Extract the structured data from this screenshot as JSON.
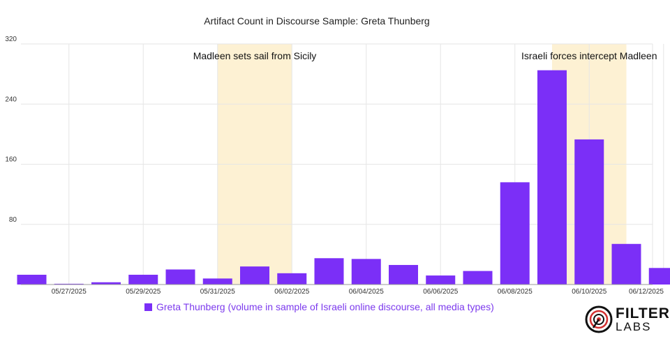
{
  "chart_data": {
    "type": "bar",
    "title": "Artifact Count in Discourse Sample: Greta Thunberg",
    "xlabel": "",
    "ylabel": "",
    "ylim": [
      0,
      320
    ],
    "y_ticks": [
      80,
      160,
      240,
      320
    ],
    "x_tick_labels": [
      "05/27/2025",
      "05/29/2025",
      "05/31/2025",
      "06/02/2025",
      "06/04/2025",
      "06/06/2025",
      "06/08/2025",
      "06/10/2025",
      "06/12/2025"
    ],
    "categories": [
      "05/26/2025",
      "05/27/2025",
      "05/28/2025",
      "05/29/2025",
      "05/30/2025",
      "05/31/2025",
      "06/01/2025",
      "06/02/2025",
      "06/03/2025",
      "06/04/2025",
      "06/05/2025",
      "06/06/2025",
      "06/07/2025",
      "06/08/2025",
      "06/09/2025",
      "06/10/2025",
      "06/11/2025",
      "06/12/2025"
    ],
    "series": [
      {
        "name": "Greta Thunberg (volume in sample of Israeli online discourse, all media types)",
        "color": "#7b2ff7",
        "values": [
          13,
          1,
          3,
          13,
          20,
          8,
          24,
          15,
          35,
          34,
          26,
          12,
          18,
          136,
          285,
          193,
          54,
          22
        ]
      }
    ],
    "annotations": [
      {
        "label": "Madleen sets sail from Sicily",
        "span": [
          "05/31/2025",
          "06/02/2025"
        ],
        "color": "#fdf1d3"
      },
      {
        "label": "Israeli forces intercept Madleen",
        "span": [
          "06/09/2025",
          "06/11/2025"
        ],
        "color": "#fdf1d3"
      }
    ],
    "grid": true,
    "legend_position": "bottom"
  },
  "legend": {
    "label": "Greta Thunberg (volume in sample of Israeli online discourse, all media types)"
  },
  "logo": {
    "line1": "FILTER",
    "line2": "LABS"
  }
}
